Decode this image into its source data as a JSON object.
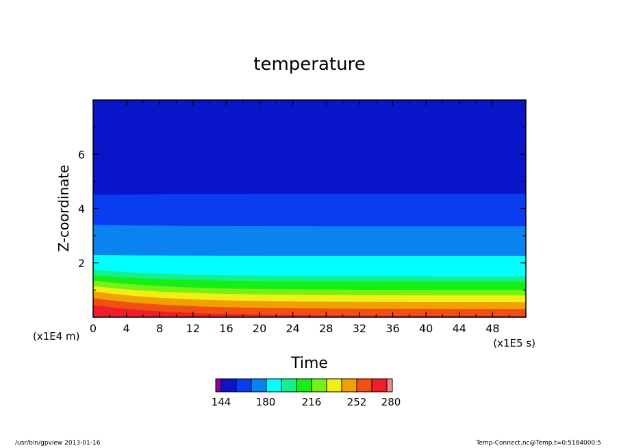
{
  "footer": {
    "left": "/usr/bin/gpview  2013-01-16",
    "right": "Temp-Connect.nc@Temp,t=0:5184000:5"
  },
  "chart_data": {
    "type": "contour",
    "title": "temperature",
    "xlabel": "Time",
    "ylabel": "Z-coordinate",
    "x_unit_label": "(x1E5 s)",
    "y_unit_label": "(x1E4 m)",
    "xlim": [
      0,
      52
    ],
    "ylim": [
      0,
      8
    ],
    "x_ticks": [
      0,
      4,
      8,
      12,
      16,
      20,
      24,
      28,
      32,
      36,
      40,
      44,
      48
    ],
    "y_ticks": [
      2,
      4,
      6
    ],
    "x_tick_labels": [
      "0",
      "4",
      "8",
      "12",
      "16",
      "20",
      "24",
      "28",
      "32",
      "36",
      "40",
      "44",
      "48"
    ],
    "y_tick_labels": [
      "2",
      "4",
      "6"
    ],
    "levels": [
      144,
      156,
      168,
      180,
      192,
      204,
      216,
      228,
      240,
      252,
      264,
      276,
      280
    ],
    "colors": [
      "#8800aa",
      "#0a14c8",
      "#0a3cf0",
      "#0a82f0",
      "#00ffff",
      "#14f08c",
      "#14f014",
      "#78f014",
      "#f0f014",
      "#f0a000",
      "#f05014",
      "#f01e28",
      "#f08c96"
    ],
    "colorbar_labels": [
      "144",
      "180",
      "216",
      "252",
      "280"
    ],
    "boundaries": [
      {
        "level": 168,
        "z_start": 4.5,
        "z_end": 4.55
      },
      {
        "level": 180,
        "z_start": 3.4,
        "z_end": 3.35
      },
      {
        "level": 192,
        "z_start": 2.3,
        "z_end": 2.25
      },
      {
        "level": 204,
        "z_start": 1.75,
        "z_end": 1.5
      },
      {
        "level": 216,
        "z_start": 1.55,
        "z_end": 1.3
      },
      {
        "level": 228,
        "z_start": 1.35,
        "z_end": 1.0
      },
      {
        "level": 240,
        "z_start": 1.15,
        "z_end": 0.8
      },
      {
        "level": 252,
        "z_start": 0.95,
        "z_end": 0.55
      },
      {
        "level": 264,
        "z_start": 0.7,
        "z_end": 0.3
      },
      {
        "level": 276,
        "z_start": 0.45,
        "z_end": 0.05
      }
    ]
  }
}
